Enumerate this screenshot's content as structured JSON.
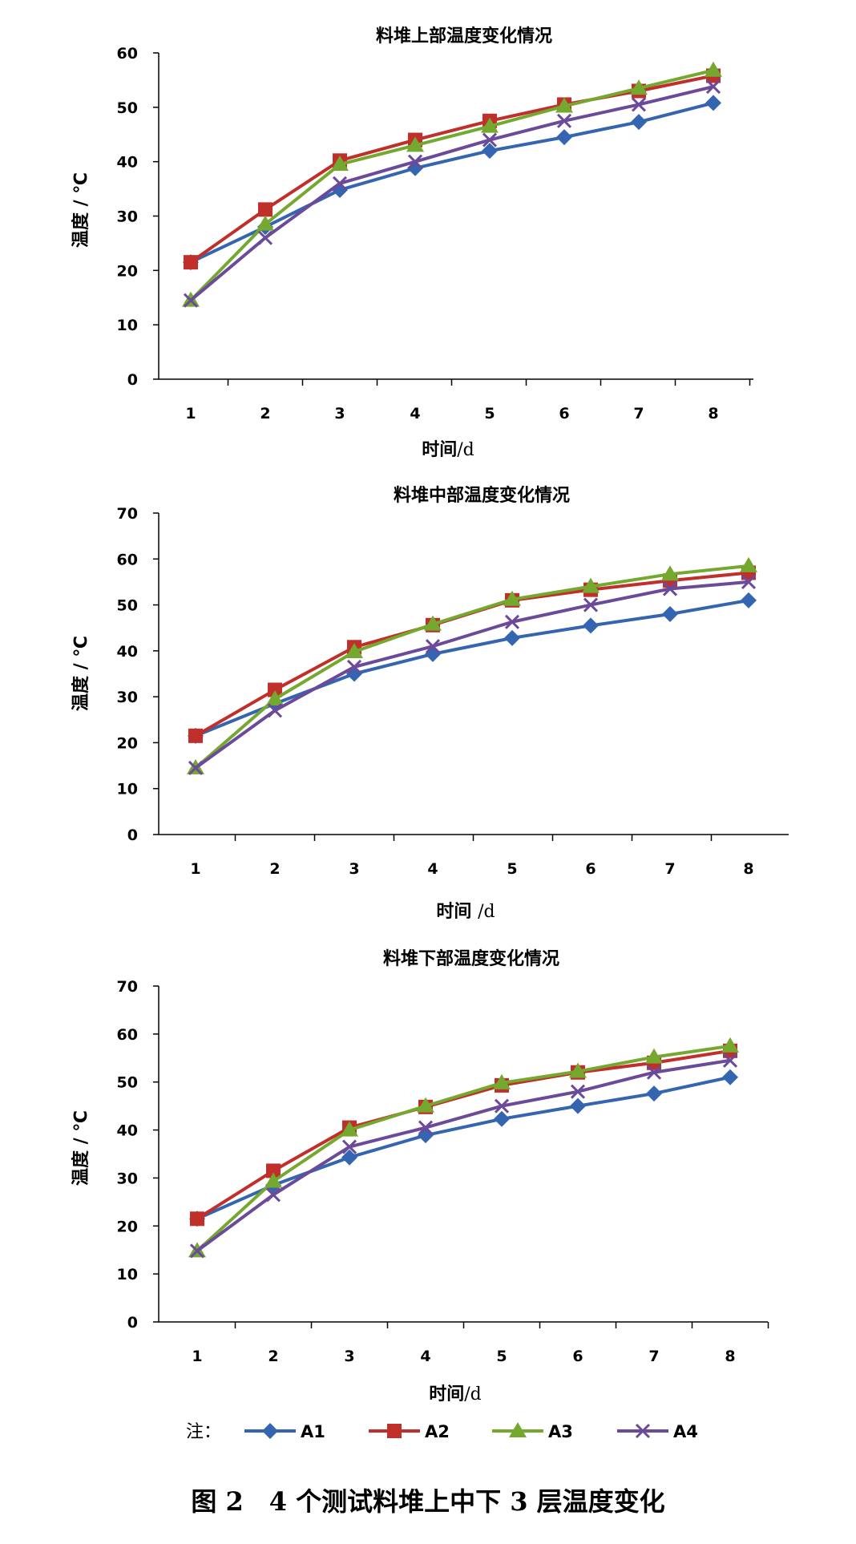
{
  "figure": {
    "caption": "图 2　4 个测试料堆上中下 3 层温度变化",
    "note_label": "注：",
    "series_colors": {
      "A1": "#3465b0",
      "A2": "#c12f2a",
      "A3": "#74a82f",
      "A4": "#6b4a9a"
    },
    "series_markers": {
      "A1": "diamond",
      "A2": "square",
      "A3": "triangle",
      "A4": "x"
    }
  },
  "legend": [
    {
      "name": "A1",
      "label": "A1"
    },
    {
      "name": "A2",
      "label": "A2"
    },
    {
      "name": "A3",
      "label": "A3"
    },
    {
      "name": "A4",
      "label": "A4"
    }
  ],
  "chart_data": [
    {
      "type": "line",
      "title": "料堆上部温度变化情况",
      "xlabel": "时间/d",
      "ylabel": "温度 / ℃",
      "categories": [
        "1",
        "2",
        "3",
        "4",
        "5",
        "6",
        "7",
        "8"
      ],
      "ylim": [
        0,
        60
      ],
      "yticks": [
        0,
        10,
        20,
        30,
        40,
        50,
        60
      ],
      "grid": false,
      "series": [
        {
          "name": "A1",
          "values": [
            21.5,
            28,
            34.8,
            38.8,
            42,
            44.5,
            47.3,
            50.8
          ]
        },
        {
          "name": "A2",
          "values": [
            21.5,
            31.2,
            40.2,
            44,
            47.5,
            50.5,
            53,
            55.8
          ]
        },
        {
          "name": "A3",
          "values": [
            14.5,
            28.5,
            39.5,
            43,
            46.5,
            50.2,
            53.5,
            56.8
          ]
        },
        {
          "name": "A4",
          "values": [
            14.5,
            26,
            36,
            40,
            44,
            47.5,
            50.5,
            53.8
          ]
        }
      ]
    },
    {
      "type": "line",
      "title": "料堆中部温度变化情况",
      "xlabel": "时间 /d",
      "ylabel": "温度 / ℃",
      "categories": [
        "1",
        "2",
        "3",
        "4",
        "5",
        "6",
        "7",
        "8"
      ],
      "ylim": [
        0,
        70
      ],
      "yticks": [
        0,
        10,
        20,
        30,
        40,
        50,
        60,
        70
      ],
      "grid": false,
      "series": [
        {
          "name": "A1",
          "values": [
            21.5,
            28.5,
            35,
            39.3,
            42.8,
            45.5,
            48,
            51
          ]
        },
        {
          "name": "A2",
          "values": [
            21.5,
            31.5,
            40.8,
            45.6,
            51,
            53.3,
            55.3,
            57
          ]
        },
        {
          "name": "A3",
          "values": [
            14.5,
            29.5,
            39.8,
            45.8,
            51.2,
            54,
            56.7,
            58.5
          ]
        },
        {
          "name": "A4",
          "values": [
            14.5,
            27,
            36.5,
            41,
            46.3,
            50,
            53.5,
            55
          ]
        }
      ]
    },
    {
      "type": "line",
      "title": "料堆下部温度变化情况",
      "xlabel": "时间/d",
      "ylabel": "温度 / ℃",
      "categories": [
        "1",
        "2",
        "3",
        "4",
        "5",
        "6",
        "7",
        "8"
      ],
      "ylim": [
        0,
        70
      ],
      "yticks": [
        0,
        10,
        20,
        30,
        40,
        50,
        60,
        70
      ],
      "grid": false,
      "series": [
        {
          "name": "A1",
          "values": [
            21.5,
            28.5,
            34.3,
            38.9,
            42.3,
            45,
            47.6,
            51
          ]
        },
        {
          "name": "A2",
          "values": [
            21.5,
            31.5,
            40.5,
            44.8,
            49.3,
            52,
            54,
            56.5
          ]
        },
        {
          "name": "A3",
          "values": [
            14.8,
            29.3,
            40,
            45,
            49.8,
            52.2,
            55.2,
            57.5
          ]
        },
        {
          "name": "A4",
          "values": [
            14.8,
            26.5,
            36.5,
            40.5,
            45,
            48,
            52,
            54.5
          ]
        }
      ]
    }
  ]
}
